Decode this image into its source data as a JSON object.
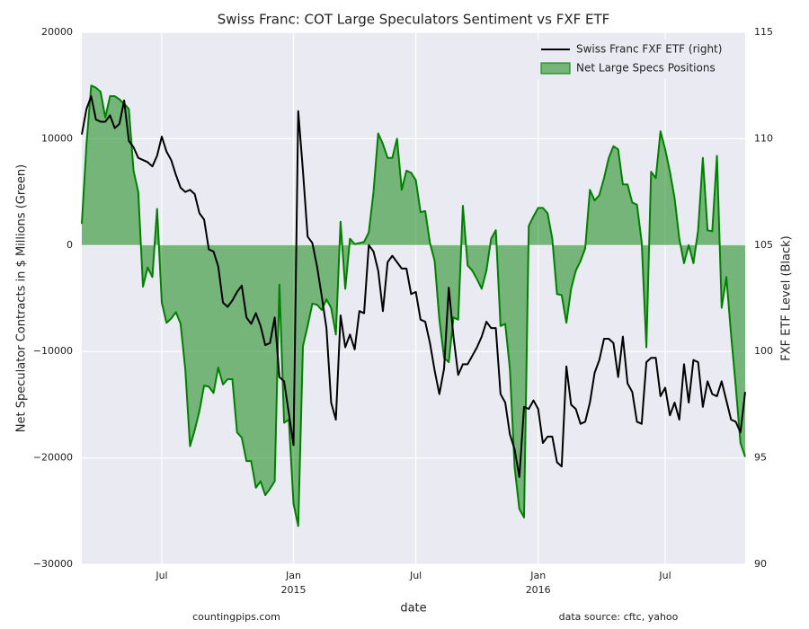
{
  "chart_data": {
    "type": "line",
    "title": "Swiss Franc: COT Large Speculators Sentiment vs FXF ETF",
    "xlabel": "date",
    "ylabel": "Net Speculator Contracts in $ Millions (Green)",
    "y2label": "FXF ETF Level (Black)",
    "notes": [
      "countingpips.com",
      "data source: cftc, yahoo"
    ],
    "legend": "upper right",
    "grid": true,
    "categories": [
      null,
      null,
      null,
      null,
      null,
      null,
      null,
      null,
      null,
      null,
      null,
      null,
      null,
      null,
      null,
      null,
      null,
      "Jul",
      null,
      null,
      null,
      null,
      null,
      null,
      null,
      null,
      null,
      null,
      null,
      null,
      null,
      null,
      null,
      null,
      null,
      null,
      null,
      null,
      null,
      null,
      null,
      null,
      null,
      null,
      null,
      "Jan\n2015",
      null,
      null,
      null,
      null,
      null,
      null,
      null,
      null,
      null,
      null,
      null,
      null,
      null,
      null,
      null,
      null,
      null,
      null,
      null,
      null,
      null,
      null,
      null,
      null,
      null,
      "Jul",
      null,
      null,
      null,
      null,
      null,
      null,
      null,
      null,
      null,
      null,
      null,
      null,
      null,
      null,
      null,
      null,
      null,
      null,
      null,
      null,
      null,
      null,
      null,
      null,
      null,
      "Jan\n2016",
      null,
      null,
      null,
      null,
      null,
      null,
      null,
      null,
      null,
      null,
      null,
      null,
      null,
      null,
      null,
      null,
      null,
      null,
      null,
      null,
      null,
      null,
      null,
      null,
      null,
      null,
      "Jul",
      null,
      null,
      null,
      null,
      null,
      null,
      null,
      null,
      null,
      null,
      null,
      null,
      null,
      null,
      null,
      null,
      null
    ],
    "ylim": [
      -30000,
      20000
    ],
    "yticks": [
      {
        "value": -30000,
        "label": "−30000"
      },
      {
        "value": -20000,
        "label": "−20000"
      },
      {
        "value": -10000,
        "label": "−10000"
      },
      0,
      10000,
      20000
    ],
    "y2lim": [
      90,
      115
    ],
    "y2ticks": [
      90,
      95,
      100,
      105,
      110,
      115
    ],
    "series": [
      {
        "name": "Swiss Franc FXF ETF (right)",
        "color": "#000000",
        "axis": "y2",
        "fill": false,
        "values": [
          110.2,
          111.4,
          112.0,
          110.9,
          110.8,
          110.8,
          111.1,
          110.5,
          110.7,
          111.8,
          109.9,
          109.6,
          109.1,
          109.0,
          108.9,
          108.7,
          109.2,
          110.1,
          109.4,
          109.0,
          108.3,
          107.7,
          107.5,
          107.6,
          107.4,
          106.5,
          106.2,
          104.8,
          104.7,
          104.0,
          102.3,
          102.1,
          102.4,
          102.8,
          103.1,
          101.6,
          101.3,
          101.8,
          101.2,
          100.3,
          100.4,
          101.6,
          98.8,
          98.6,
          97.1,
          95.6,
          111.3,
          108.5,
          105.4,
          105.1,
          104.0,
          102.6,
          101.1,
          97.6,
          96.8,
          101.7,
          100.2,
          100.8,
          100.1,
          101.9,
          101.8,
          105.0,
          104.7,
          103.8,
          101.9,
          104.2,
          104.5,
          104.2,
          103.9,
          103.9,
          102.7,
          102.8,
          101.5,
          101.4,
          100.4,
          99.1,
          98.0,
          99.2,
          103.0,
          100.7,
          98.9,
          99.4,
          99.4,
          99.8,
          100.2,
          100.7,
          101.4,
          101.1,
          101.1,
          98.0,
          97.6,
          96.1,
          95.4,
          94.1,
          97.4,
          97.3,
          97.7,
          97.3,
          95.7,
          96.0,
          96.0,
          94.8,
          94.6,
          99.3,
          97.5,
          97.3,
          96.6,
          96.7,
          97.6,
          99.0,
          99.6,
          100.6,
          100.6,
          100.4,
          98.8,
          100.7,
          98.5,
          98.1,
          96.7,
          96.6,
          99.5,
          99.7,
          99.7,
          97.9,
          98.3,
          97.0,
          97.6,
          96.8,
          99.4,
          97.6,
          99.6,
          99.5,
          97.4,
          98.6,
          98.0,
          97.9,
          98.6,
          97.7,
          96.8,
          96.7,
          96.2,
          98.1
        ]
      },
      {
        "name": "Net Large Specs Positions",
        "color": "#008000",
        "fill": true,
        "values": [
          2000,
          9500,
          15000,
          14800,
          14400,
          12000,
          14000,
          14000,
          13700,
          13300,
          12800,
          7000,
          5000,
          -3900,
          -2100,
          -3000,
          3400,
          -5400,
          -7300,
          -6900,
          -6300,
          -7400,
          -11700,
          -18900,
          -17400,
          -15600,
          -13200,
          -13300,
          -13900,
          -11500,
          -13100,
          -12600,
          -12600,
          -17600,
          -18100,
          -20300,
          -20300,
          -22800,
          -22200,
          -23500,
          -22900,
          -22200,
          -3700,
          -16700,
          -16400,
          -24300,
          -26400,
          -9500,
          -7600,
          -5500,
          -5600,
          -6100,
          -5100,
          -5900,
          -8400,
          2200,
          -4100,
          600,
          100,
          200,
          300,
          1200,
          5000,
          10500,
          9500,
          8200,
          8200,
          10000,
          5200,
          7000,
          6800,
          6100,
          3100,
          3200,
          200,
          -1500,
          -7000,
          -10600,
          -11000,
          -6800,
          -7000,
          3700,
          -1900,
          -2400,
          -3200,
          -4100,
          -2400,
          600,
          1400,
          -7600,
          -7400,
          -11700,
          -20900,
          -24800,
          -25600,
          1800,
          2700,
          3500,
          3500,
          3000,
          600,
          -4600,
          -4700,
          -7300,
          -4100,
          -2400,
          -1500,
          -300,
          5200,
          4200,
          4700,
          6300,
          8200,
          9300,
          9000,
          5700,
          5700,
          4000,
          3800,
          300,
          -9600,
          6900,
          6300,
          10700,
          9000,
          6900,
          4400,
          600,
          -1700,
          0,
          -1700,
          1400,
          8200,
          1400,
          1300,
          8400,
          -5900,
          -3000,
          -8400,
          -13300,
          -18600,
          -19900
        ]
      }
    ]
  }
}
